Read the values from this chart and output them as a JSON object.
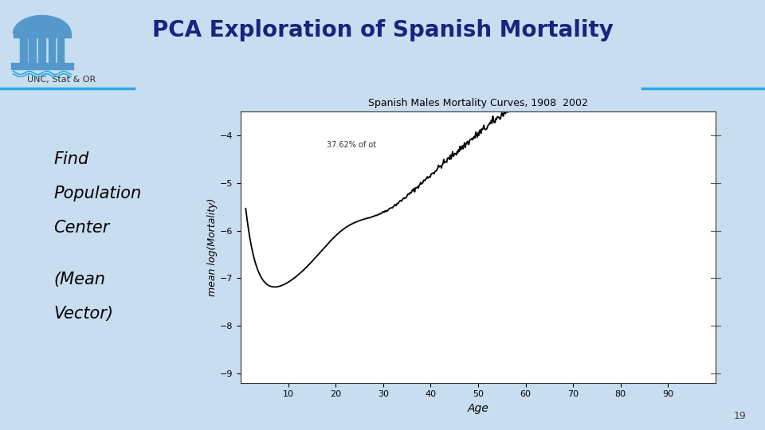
{
  "title": "PCA Exploration of Spanish Mortality",
  "subtitle": "Spanish Males Mortality Curves, 1908  2002",
  "ylabel": "mean log(Mortality)",
  "xlabel": "Age",
  "left_text_line1": "Find",
  "left_text_line2": "Population",
  "left_text_line3": "Center",
  "left_text_line4": "(Mean",
  "left_text_line5": "Vector)",
  "annotation": "37.62% of ot",
  "unc_text": "UNC, Stat & OR",
  "page_num": "19",
  "ylim": [
    -9.2,
    -3.5
  ],
  "xlim": [
    0,
    100
  ],
  "yticks": [
    -9,
    -8,
    -7,
    -6,
    -5,
    -4
  ],
  "xticks": [
    10,
    20,
    30,
    40,
    50,
    60,
    70,
    80,
    90
  ],
  "bg_color": "#c8ddf0",
  "plot_bg": "#ffffff",
  "title_color": "#1a237e",
  "left_text_color": "#000000",
  "curve_color": "#000000",
  "header_line_color": "#29abe2",
  "unc_color": "#333333"
}
